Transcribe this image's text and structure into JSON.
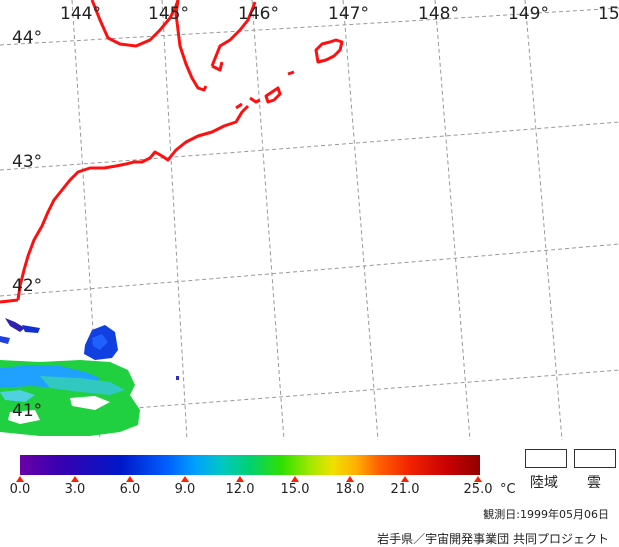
{
  "map": {
    "lon_labels": [
      "144°",
      "145°",
      "146°",
      "147°",
      "148°",
      "149°",
      "15"
    ],
    "lat_labels": [
      "44°",
      "43°",
      "42°",
      "41°"
    ]
  },
  "colorbar": {
    "tick_labels": [
      "0.0",
      "3.0",
      "6.0",
      "9.0",
      "12.0",
      "15.0",
      "18.0",
      "21.0",
      "25.0"
    ],
    "unit": "°C"
  },
  "legend": {
    "land": "陸域",
    "cloud": "雲"
  },
  "observation_date": "観測日:1999年05月06日",
  "credit": "岩手県／宇宙開発事業団 共同プロジェクト"
}
